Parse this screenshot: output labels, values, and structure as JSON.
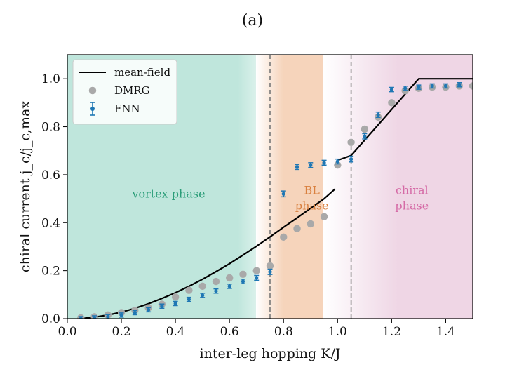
{
  "chart_data": {
    "type": "scatter",
    "panel_label": "(a)",
    "xlabel": "inter-leg hopping K/J",
    "ylabel": "chiral current j_c/j_c,max",
    "xlim": [
      0.0,
      1.5
    ],
    "ylim": [
      0.0,
      1.1
    ],
    "xticks": [
      0.0,
      0.2,
      0.4,
      0.6,
      0.8,
      1.0,
      1.2,
      1.4
    ],
    "yticks": [
      0.0,
      0.2,
      0.4,
      0.6,
      0.8,
      1.0
    ],
    "xtick_labels": [
      "0.0",
      "0.2",
      "0.4",
      "0.6",
      "0.8",
      "1.0",
      "1.2",
      "1.4"
    ],
    "ytick_labels": [
      "0.0",
      "0.2",
      "0.4",
      "0.6",
      "0.8",
      "1.0"
    ],
    "legend_position": "top-left",
    "phase_boundaries": [
      0.75,
      1.05
    ],
    "regions": [
      {
        "name": "vortex phase",
        "lines": [
          "vortex phase"
        ],
        "x_from": 0.0,
        "x_to": 0.75,
        "color": "#bfe6dc",
        "text_color": "#2a9d78",
        "label_x": 0.375,
        "label_y": 0.505
      },
      {
        "name": "BL phase",
        "lines": [
          "BL",
          "phase"
        ],
        "x_from": 0.75,
        "x_to": 1.05,
        "color": "#f6d6bf",
        "text_color": "#d9803f",
        "label_x": 0.905,
        "label_y": 0.52
      },
      {
        "name": "chiral phase",
        "lines": [
          "chiral",
          "phase"
        ],
        "x_from": 1.05,
        "x_to": 1.5,
        "color": "#efd6e5",
        "text_color": "#d56aa6",
        "label_x": 1.275,
        "label_y": 0.52
      }
    ],
    "series": [
      {
        "name": "mean-field",
        "style": "line",
        "color": "#000000",
        "segments": [
          {
            "x": [
              0.05,
              0.1,
              0.15,
              0.2,
              0.25,
              0.3,
              0.35,
              0.4,
              0.45,
              0.5,
              0.55,
              0.6,
              0.65,
              0.7,
              0.75,
              0.8,
              0.85,
              0.9,
              0.95,
              0.99
            ],
            "y": [
              0.0,
              0.006,
              0.015,
              0.027,
              0.043,
              0.062,
              0.084,
              0.108,
              0.135,
              0.164,
              0.196,
              0.229,
              0.265,
              0.302,
              0.341,
              0.381,
              0.42,
              0.46,
              0.5,
              0.54
            ]
          },
          {
            "x": [
              1.0,
              1.05,
              1.3,
              1.5
            ],
            "y": [
              0.66,
              0.68,
              1.0,
              1.0
            ]
          }
        ]
      },
      {
        "name": "DMRG",
        "style": "points",
        "color": "#a9a9a9",
        "x": [
          0.05,
          0.1,
          0.15,
          0.2,
          0.25,
          0.3,
          0.35,
          0.4,
          0.45,
          0.5,
          0.55,
          0.6,
          0.65,
          0.7,
          0.75,
          0.8,
          0.85,
          0.9,
          0.95,
          1.0,
          1.05,
          1.1,
          1.15,
          1.2,
          1.25,
          1.3,
          1.35,
          1.4,
          1.45,
          1.5
        ],
        "y": [
          0.003,
          0.008,
          0.015,
          0.025,
          0.035,
          0.045,
          0.06,
          0.09,
          0.118,
          0.135,
          0.155,
          0.17,
          0.185,
          0.2,
          0.22,
          0.34,
          0.375,
          0.395,
          0.425,
          0.64,
          0.735,
          0.79,
          0.84,
          0.9,
          0.95,
          0.96,
          0.965,
          0.965,
          0.97,
          0.97
        ]
      },
      {
        "name": "FNN",
        "style": "errorbar",
        "color": "#1f77b4",
        "x": [
          0.05,
          0.1,
          0.15,
          0.2,
          0.25,
          0.3,
          0.35,
          0.4,
          0.45,
          0.5,
          0.55,
          0.6,
          0.65,
          0.7,
          0.75,
          0.8,
          0.85,
          0.9,
          0.95,
          1.0,
          1.05,
          1.1,
          1.15,
          1.2,
          1.25,
          1.3,
          1.35,
          1.4,
          1.45
        ],
        "y": [
          0.0,
          0.003,
          0.008,
          0.015,
          0.025,
          0.037,
          0.052,
          0.063,
          0.08,
          0.097,
          0.115,
          0.135,
          0.155,
          0.17,
          0.195,
          0.52,
          0.632,
          0.64,
          0.65,
          0.655,
          0.665,
          0.76,
          0.85,
          0.955,
          0.96,
          0.965,
          0.97,
          0.97,
          0.975
        ],
        "yerr": [
          0.005,
          0.005,
          0.006,
          0.006,
          0.007,
          0.007,
          0.007,
          0.008,
          0.008,
          0.008,
          0.009,
          0.009,
          0.009,
          0.01,
          0.011,
          0.012,
          0.01,
          0.01,
          0.01,
          0.01,
          0.012,
          0.011,
          0.011,
          0.009,
          0.009,
          0.008,
          0.008,
          0.008,
          0.008
        ]
      }
    ]
  }
}
